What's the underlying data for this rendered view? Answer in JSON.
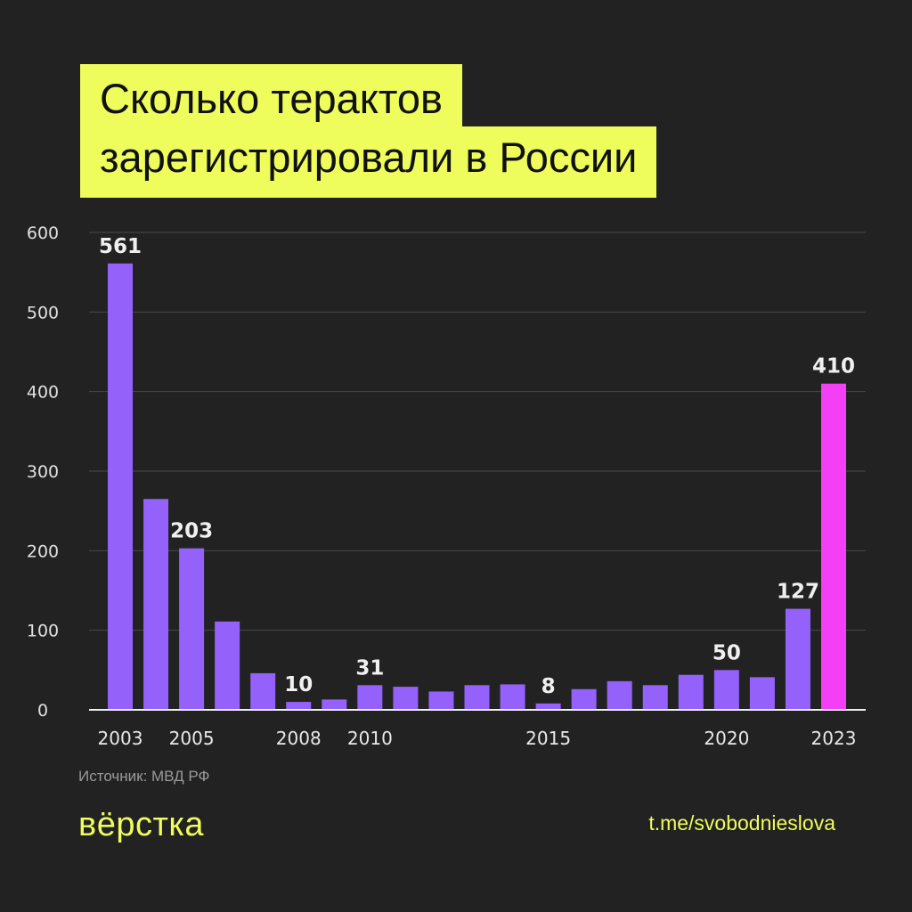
{
  "title": {
    "line1": "Сколько терактов",
    "line2": "зарегистрировали в России"
  },
  "source": "Источник: МВД РФ",
  "logo": "вёрстка",
  "link": "t.me/svobodnieslova",
  "colors": {
    "background": "#222222",
    "accent": "#eefc5c",
    "bar": "#9461fb",
    "highlight": "#f33ff5"
  },
  "chart_data": {
    "type": "bar",
    "categories": [
      "2003",
      "2004",
      "2005",
      "2006",
      "2007",
      "2008",
      "2009",
      "2010",
      "2011",
      "2012",
      "2013",
      "2014",
      "2015",
      "2016",
      "2017",
      "2018",
      "2019",
      "2020",
      "2021",
      "2022",
      "2023"
    ],
    "values": [
      561,
      265,
      203,
      111,
      46,
      10,
      13,
      31,
      29,
      23,
      31,
      32,
      8,
      26,
      36,
      31,
      44,
      50,
      41,
      127,
      410
    ],
    "data_labels": {
      "2003": "561",
      "2005": "203",
      "2008": "10",
      "2010": "31",
      "2015": "8",
      "2020": "50",
      "2022": "127",
      "2023": "410"
    },
    "x_tick_labels": [
      "2003",
      "2005",
      "2008",
      "2010",
      "2015",
      "2020",
      "2023"
    ],
    "y_ticks": [
      0,
      100,
      200,
      300,
      400,
      500,
      600
    ],
    "ylim": [
      0,
      600
    ],
    "grid": true,
    "highlight_category": "2023"
  }
}
